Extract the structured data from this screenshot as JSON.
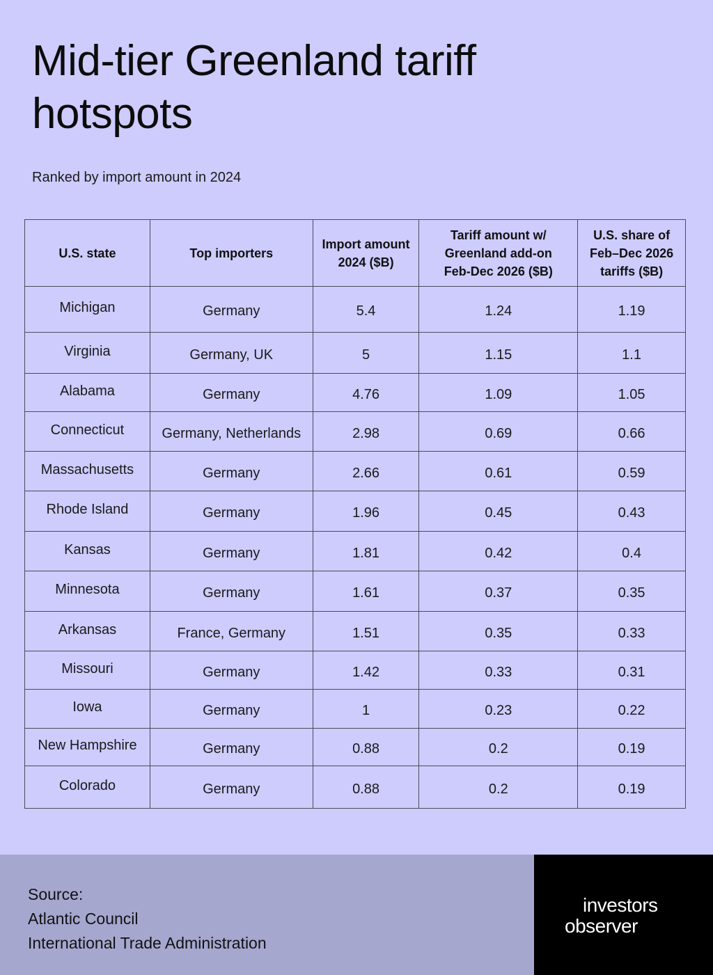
{
  "title": "Mid-tier Greenland tariff hotspots",
  "subtitle": "Ranked by import amount in 2024",
  "table": {
    "headers": {
      "state": "U.S. state",
      "importers": "Top importers",
      "import_line1": "Import amount",
      "import_line2": "2024 ($B)",
      "tariff_line1": "Tariff amount w/",
      "tariff_line2": "Greenland add-on",
      "tariff_line3": "Feb-Dec 2026 ($B)",
      "share_line1": "U.S. share of",
      "share_line2": "Feb–Dec 2026",
      "share_line3": "tariffs ($B)"
    },
    "rows": [
      {
        "state": "Michigan",
        "importers": "Germany",
        "import": "5.4",
        "tariff": "1.24",
        "share": "1.19"
      },
      {
        "state": "Virginia",
        "importers": "Germany, UK",
        "import": "5",
        "tariff": "1.15",
        "share": "1.1"
      },
      {
        "state": "Alabama",
        "importers": "Germany",
        "import": "4.76",
        "tariff": "1.09",
        "share": "1.05"
      },
      {
        "state": "Connecticut",
        "importers": "Germany, Netherlands",
        "import": "2.98",
        "tariff": "0.69",
        "share": "0.66"
      },
      {
        "state": "Massachusetts",
        "importers": "Germany",
        "import": "2.66",
        "tariff": "0.61",
        "share": "0.59"
      },
      {
        "state": "Rhode Island",
        "importers": "Germany",
        "import": "1.96",
        "tariff": "0.45",
        "share": "0.43"
      },
      {
        "state": "Kansas",
        "importers": "Germany",
        "import": "1.81",
        "tariff": "0.42",
        "share": "0.4"
      },
      {
        "state": "Minnesota",
        "importers": "Germany",
        "import": "1.61",
        "tariff": "0.37",
        "share": "0.35"
      },
      {
        "state": "Arkansas",
        "importers": "France, Germany",
        "import": "1.51",
        "tariff": "0.35",
        "share": "0.33"
      },
      {
        "state": "Missouri",
        "importers": "Germany",
        "import": "1.42",
        "tariff": "0.33",
        "share": "0.31"
      },
      {
        "state": "Iowa",
        "importers": "Germany",
        "import": "1",
        "tariff": "0.23",
        "share": "0.22"
      },
      {
        "state": "New Hampshire",
        "importers": "Germany",
        "import": "0.88",
        "tariff": "0.2",
        "share": "0.19"
      },
      {
        "state": "Colorado",
        "importers": "Germany",
        "import": "0.88",
        "tariff": "0.2",
        "share": "0.19"
      }
    ]
  },
  "chart_data": {
    "type": "table",
    "title": "Mid-tier Greenland tariff hotspots",
    "subtitle": "Ranked by import amount in 2024",
    "columns": [
      "U.S. state",
      "Top importers",
      "Import amount 2024 ($B)",
      "Tariff amount w/ Greenland add-on Feb-Dec 2026 ($B)",
      "U.S. share of Feb–Dec 2026 tariffs ($B)"
    ],
    "rows": [
      [
        "Michigan",
        "Germany",
        5.4,
        1.24,
        1.19
      ],
      [
        "Virginia",
        "Germany, UK",
        5,
        1.15,
        1.1
      ],
      [
        "Alabama",
        "Germany",
        4.76,
        1.09,
        1.05
      ],
      [
        "Connecticut",
        "Germany, Netherlands",
        2.98,
        0.69,
        0.66
      ],
      [
        "Massachusetts",
        "Germany",
        2.66,
        0.61,
        0.59
      ],
      [
        "Rhode Island",
        "Germany",
        1.96,
        0.45,
        0.43
      ],
      [
        "Kansas",
        "Germany",
        1.81,
        0.42,
        0.4
      ],
      [
        "Minnesota",
        "Germany",
        1.61,
        0.37,
        0.35
      ],
      [
        "Arkansas",
        "France, Germany",
        1.51,
        0.35,
        0.33
      ],
      [
        "Missouri",
        "Germany",
        1.42,
        0.33,
        0.31
      ],
      [
        "Iowa",
        "Germany",
        1,
        0.23,
        0.22
      ],
      [
        "New Hampshire",
        "Germany",
        0.88,
        0.2,
        0.19
      ],
      [
        "Colorado",
        "Germany",
        0.88,
        0.2,
        0.19
      ]
    ]
  },
  "footer": {
    "source_label": "Source:",
    "sources": [
      "Atlantic Council",
      "International Trade Administration"
    ],
    "logo_line1": "investors",
    "logo_line2": "observer"
  },
  "colors": {
    "background": "#cdccfd",
    "footer_source_bg": "#a6a7cf",
    "logo_bg": "#000000",
    "grid": "#4a4a58"
  }
}
